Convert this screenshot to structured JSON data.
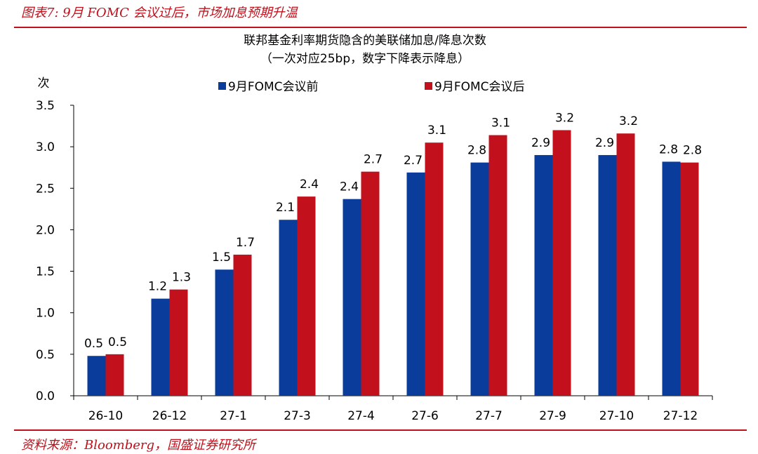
{
  "figure": {
    "caption": "图表7:  9月 FOMC 会议过后，市场加息预期升温",
    "source": "资料来源：Bloomberg，国盛证券研究所"
  },
  "colors": {
    "accent": "#c0101b",
    "series_before": "#0a3c9c",
    "series_after": "#c2101c"
  },
  "chart_data": {
    "type": "bar",
    "title": "联邦基金利率期货隐含的美联储加息/降息次数",
    "subtitle": "（一次对应25bp，数字下降表示降息）",
    "xlabel": "",
    "ylabel": "次",
    "ylim": [
      0,
      3.5
    ],
    "yticks": [
      "0.0",
      "0.5",
      "1.0",
      "1.5",
      "2.0",
      "2.5",
      "3.0",
      "3.5"
    ],
    "categories": [
      "26-10",
      "26-12",
      "27-1",
      "27-3",
      "27-4",
      "27-6",
      "27-7",
      "27-9",
      "27-10",
      "27-12"
    ],
    "series": [
      {
        "name": "9月FOMC会议前",
        "values": [
          0.48,
          1.17,
          1.52,
          2.12,
          2.37,
          2.69,
          2.81,
          2.9,
          2.9,
          2.82
        ],
        "labels": [
          "0.5",
          "1.2",
          "1.5",
          "2.1",
          "2.4",
          "2.7",
          "2.8",
          "2.9",
          "2.9",
          "2.8"
        ]
      },
      {
        "name": "9月FOMC会议后",
        "values": [
          0.5,
          1.28,
          1.7,
          2.4,
          2.7,
          3.05,
          3.14,
          3.2,
          3.16,
          2.81
        ],
        "labels": [
          "0.5",
          "1.3",
          "1.7",
          "2.4",
          "2.7",
          "3.1",
          "3.1",
          "3.2",
          "3.2",
          "2.8"
        ]
      }
    ],
    "grid": false,
    "legend_position": "top"
  }
}
